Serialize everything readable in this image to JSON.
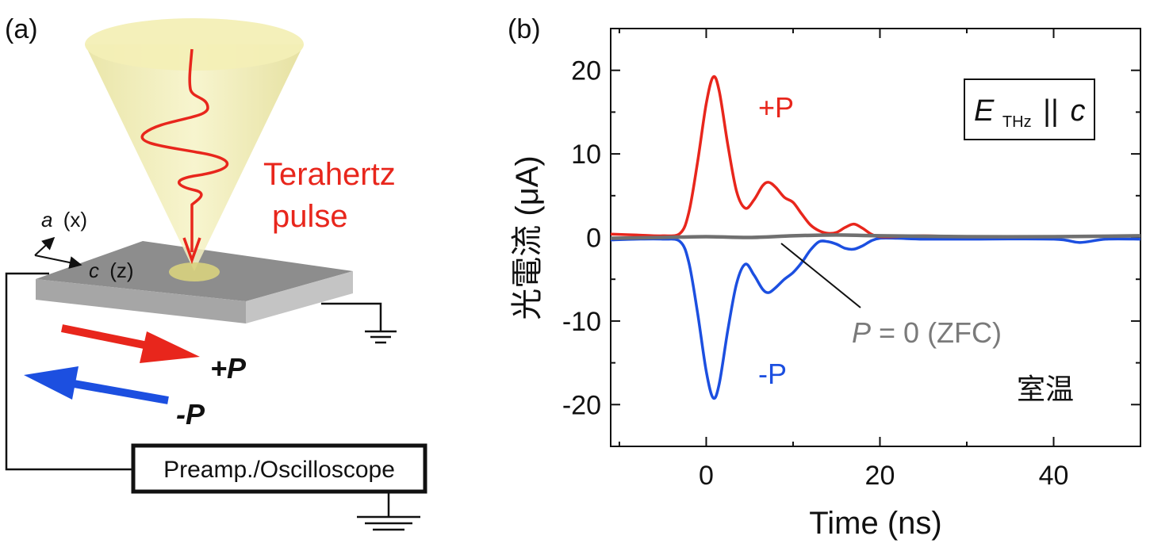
{
  "panel_a": {
    "label": "(a)",
    "pulse_label_line1": "Terahertz",
    "pulse_label_line2": "pulse",
    "axis_a_letter": "a",
    "axis_a_coord": "(x)",
    "axis_c_letter": "c",
    "axis_c_coord": "(z)",
    "plus_p": "+P",
    "minus_p": "-P",
    "instrument": "Preamp./Oscilloscope",
    "colors": {
      "red": "#e8261c",
      "blue": "#1c4fe0",
      "cone": "#f1eeb4",
      "sample": "#9a9a9a"
    }
  },
  "chart_data": {
    "panel_label": "(b)",
    "type": "line",
    "xlabel": "Time (ns)",
    "ylabel": "光電流 (μA)",
    "xlim": [
      -11,
      50
    ],
    "ylim": [
      -25,
      25
    ],
    "xticks": [
      0,
      20,
      40
    ],
    "xtick_labels": [
      "0",
      "20",
      "40"
    ],
    "yticks": [
      -20,
      -10,
      0,
      10,
      20
    ],
    "ytick_labels": [
      "-20",
      "-10",
      "0",
      "10",
      "20"
    ],
    "grid": false,
    "legend_box": {
      "E": "E",
      "sub": "THz",
      "rest": "||",
      "c": "c"
    },
    "series": [
      {
        "name": "+P",
        "color": "#e8261c",
        "x": [
          -11,
          -8,
          -5,
          -3,
          -2,
          -1,
          0,
          0.8,
          1.5,
          2.5,
          3.5,
          4.5,
          5.5,
          6.5,
          7.2,
          8,
          9,
          10,
          11,
          12,
          13,
          14,
          15,
          16,
          17,
          18,
          19,
          20,
          22,
          25,
          30,
          40,
          50
        ],
        "y": [
          0.4,
          0.3,
          0.2,
          0.5,
          3,
          9,
          16,
          19.2,
          17.5,
          11,
          5.5,
          3.5,
          4.5,
          6.2,
          6.6,
          6,
          4.8,
          4.2,
          2.8,
          1.5,
          0.8,
          0.5,
          0.6,
          1.2,
          1.6,
          1.1,
          0.4,
          0.1,
          0.1,
          0.2,
          0.1,
          0.1,
          0.2
        ]
      },
      {
        "name": "-P",
        "color": "#1c4fe0",
        "x": [
          -11,
          -8,
          -5,
          -3,
          -2,
          -1,
          0,
          0.8,
          1.5,
          2.5,
          3.5,
          4.5,
          5.5,
          6.5,
          7.2,
          8,
          9,
          10,
          11,
          12,
          13,
          14,
          15,
          16,
          17,
          18,
          19,
          20,
          22,
          25,
          30,
          40,
          43,
          46,
          50
        ],
        "y": [
          -0.3,
          -0.2,
          -0.2,
          -0.5,
          -3,
          -9,
          -16,
          -19.2,
          -17.5,
          -11,
          -5.5,
          -3.2,
          -4.5,
          -6.2,
          -6.6,
          -6,
          -5,
          -4.2,
          -3,
          -1.5,
          -0.5,
          -0.5,
          -0.8,
          -1.3,
          -1.4,
          -1,
          -0.4,
          -0.1,
          -0.1,
          -0.2,
          -0.2,
          -0.2,
          -0.6,
          -0.2,
          -0.2
        ]
      },
      {
        "name": "P = 0 (ZFC)",
        "color": "#707070",
        "x": [
          -11,
          -5,
          0,
          5,
          10,
          15,
          20,
          30,
          40,
          50
        ],
        "y": [
          -0.1,
          0,
          0.1,
          0,
          0.2,
          0.3,
          0.2,
          0.1,
          0.1,
          0.2
        ]
      }
    ],
    "annotations": {
      "plus_label": "+P",
      "minus_label": "-P",
      "zfc_label_P": "P",
      "zfc_label_rest": " = 0 (ZFC)",
      "room_temp": "室温"
    }
  }
}
